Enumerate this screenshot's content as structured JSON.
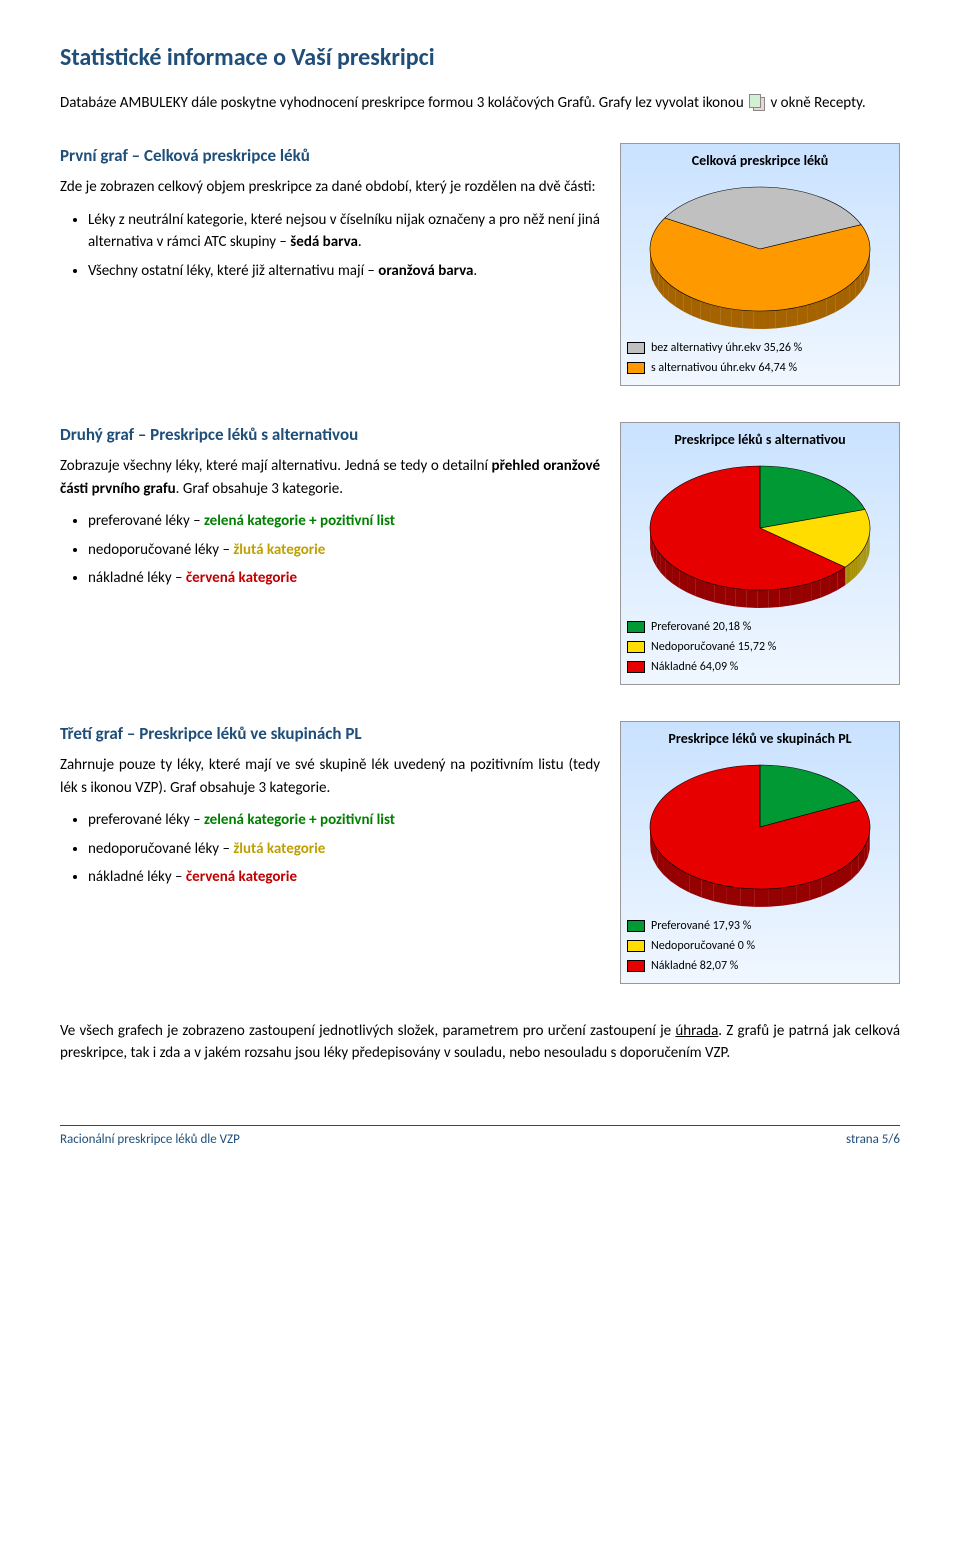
{
  "title": "Statistické informace o Vaší preskripci",
  "intro": {
    "part1": "Databáze AMBULEKY dále poskytne vyhodnocení preskripce formou 3 koláčových Grafů. Grafy lez vyvolat ikonou ",
    "part2": " v okně Recepty."
  },
  "section1": {
    "heading": "První graf – Celková preskripce léků",
    "lead": "Zde je zobrazen celkový objem preskripce za dané období, který je rozdělen na dvě části:",
    "bullets": [
      {
        "pre": "Léky z neutrální kategorie, které nejsou v číselníku nijak označeny a pro něž není jiná alternativa v rámci ATC skupiny – ",
        "bold": "šedá barva",
        "post": "."
      },
      {
        "pre": "Všechny ostatní léky, které již alternativu mají – ",
        "bold": "oranžová barva",
        "post": "."
      }
    ],
    "chart": {
      "title": "Celková preskripce léků",
      "slices": [
        {
          "value": 35.26,
          "color": "#c0c0c0",
          "label": "bez alternativy úhr.ekv 35,26 %"
        },
        {
          "value": 64.74,
          "color": "#ff9900",
          "label": "s alternativou úhr.ekv 64,74 %"
        }
      ],
      "start_angle": -150,
      "bg_gradient_top": "#c9e2ff",
      "bg_gradient_bottom": "#f0f7ff"
    }
  },
  "section2": {
    "heading": "Druhý graf – Preskripce léků s alternativou",
    "lead": "Zobrazuje všechny léky, které mají alternativu. Jedná se tedy o detailní ",
    "lead_bold": "přehled oranžové části prvního grafu",
    "lead_post": ". Graf obsahuje 3 kategorie.",
    "bullets": {
      "b1_pre": "preferované léky – ",
      "b1_col": "zelená kategorie + pozitivní list",
      "b2_pre": "nedoporučované léky – ",
      "b2_col": "žlutá kategorie",
      "b3_pre": "nákladné léky – ",
      "b3_col": "červená kategorie"
    },
    "chart": {
      "title": "Preskripce léků s alternativou",
      "slices": [
        {
          "value": 20.18,
          "color": "#009933",
          "label": "Preferované 20,18 %"
        },
        {
          "value": 15.72,
          "color": "#ffdd00",
          "label": "Nedoporučované 15,72 %"
        },
        {
          "value": 64.09,
          "color": "#e60000",
          "label": "Nákladné 64,09 %"
        }
      ],
      "start_angle": -90
    }
  },
  "section3": {
    "heading": "Třetí graf – Preskripce léků ve skupinách PL",
    "lead": "Zahrnuje pouze ty léky, které mají ve své skupině lék uvedený na pozitivním listu (tedy lék s ikonou VZP). Graf obsahuje 3 kategorie.",
    "bullets": {
      "b1_pre": "preferované léky – ",
      "b1_col": "zelená kategorie + pozitivní list",
      "b2_pre": "nedoporučované léky – ",
      "b2_col": "žlutá kategorie",
      "b3_pre": "nákladné léky – ",
      "b3_col": "červená kategorie"
    },
    "chart": {
      "title": "Preskripce léků ve skupinách PL",
      "slices": [
        {
          "value": 17.93,
          "color": "#009933",
          "label": "Preferované 17,93 %"
        },
        {
          "value": 0,
          "color": "#ffdd00",
          "label": "Nedoporučované 0 %"
        },
        {
          "value": 82.07,
          "color": "#e60000",
          "label": "Nákladné 82,07 %"
        }
      ],
      "start_angle": -90
    }
  },
  "closing": "Ve všech grafech je zobrazeno zastoupení jednotlivých složek, parametrem pro určení zastoupení je úhrada. Z grafů je patrná jak celková preskripce, tak i zda a v jakém rozsahu jsou léky předepisovány v souladu, nebo nesouladu s doporučením VZP.",
  "underline_word": "úhrada",
  "footer": {
    "left": "Racionální preskripce léků dle VZP",
    "right": "strana 5/6"
  }
}
